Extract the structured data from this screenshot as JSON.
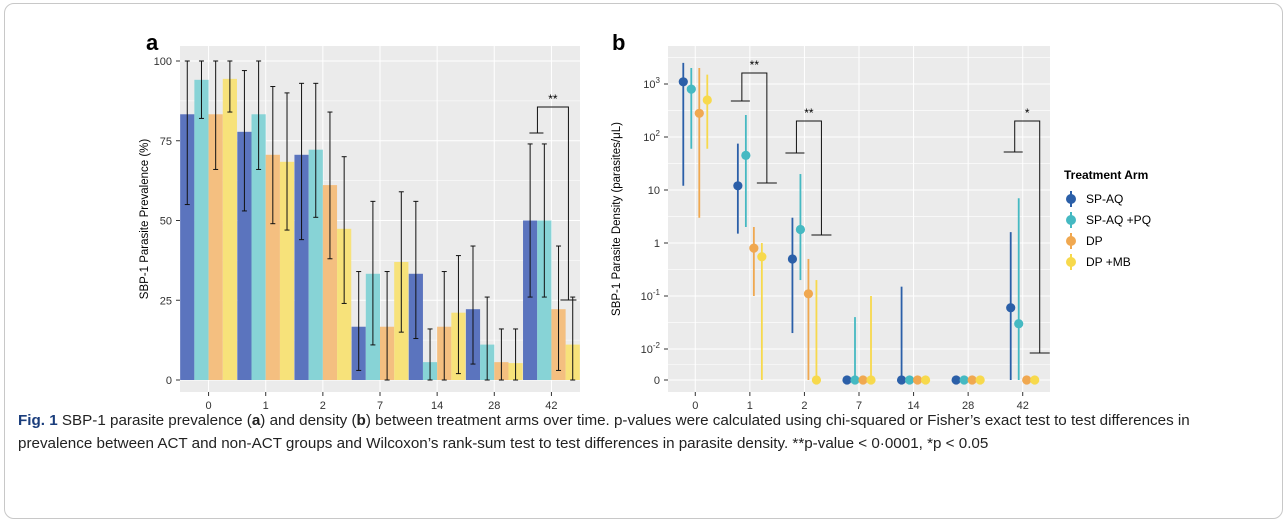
{
  "colors": {
    "sp_aq": "#5b74be",
    "sp_aq_pq": "#87d3d6",
    "dp": "#f4bf80",
    "dp_mb": "#f7e27a",
    "sp_aq_dot": "#2b5fa8",
    "sp_aq_pq_dot": "#45b9c2",
    "dp_dot": "#f0a850",
    "dp_mb_dot": "#f7d94c",
    "panel_bg": "#ebebeb",
    "grid": "#ffffff"
  },
  "chart_data": [
    {
      "panel": "a",
      "type": "bar",
      "xlabel": "Time (Days)",
      "ylabel": "SBP-1 Parasite Prevalence (%)",
      "ylim": [
        0,
        100
      ],
      "yticks": [
        "0",
        "25",
        "50",
        "75",
        "100"
      ],
      "categories": [
        "0",
        "1",
        "2",
        "7",
        "14",
        "28",
        "42"
      ],
      "series": [
        {
          "name": "SP-AQ",
          "values": [
            83.3,
            77.8,
            70.6,
            16.7,
            33.3,
            22.2,
            50.0
          ],
          "ci_low": [
            55,
            53,
            44,
            3,
            13,
            5,
            26
          ],
          "ci_high": [
            100,
            97,
            93,
            34,
            56,
            42,
            74
          ]
        },
        {
          "name": "SP-AQ +PQ",
          "values": [
            94.1,
            83.3,
            72.2,
            33.3,
            5.6,
            11.1,
            50.0
          ],
          "ci_low": [
            82,
            66,
            51,
            11,
            0,
            0,
            26
          ],
          "ci_high": [
            100,
            100,
            93,
            56,
            16,
            26,
            74
          ]
        },
        {
          "name": "DP",
          "values": [
            83.3,
            70.6,
            61.1,
            16.7,
            16.7,
            5.6,
            22.2
          ],
          "ci_low": [
            66,
            49,
            38,
            0,
            0,
            0,
            3
          ],
          "ci_high": [
            100,
            92,
            84,
            34,
            34,
            16,
            42
          ]
        },
        {
          "name": "DP +MB",
          "values": [
            94.4,
            68.4,
            47.4,
            37.0,
            21.1,
            5.3,
            11.1
          ],
          "ci_low": [
            84,
            47,
            24,
            15,
            2,
            0,
            0
          ],
          "ci_high": [
            100,
            90,
            70,
            59,
            39,
            16,
            26
          ]
        }
      ],
      "annotations": [
        {
          "text": "**",
          "day": "42"
        }
      ]
    },
    {
      "panel": "b",
      "type": "scatter",
      "xlabel": "Time (Days)",
      "ylabel": "SBP-1 Parasite Density (parasites/μL)",
      "yscale": "log (with 0 row)",
      "yticks": [
        "0",
        "10^-2",
        "10^-1",
        "1",
        "10",
        "10^2",
        "10^3"
      ],
      "categories": [
        "0",
        "1",
        "2",
        "7",
        "14",
        "28",
        "42"
      ],
      "series": [
        {
          "name": "SP-AQ",
          "values": [
            1100,
            12,
            0.5,
            0,
            0,
            0,
            0.06
          ],
          "ci_low": [
            12,
            1.5,
            0.02,
            0,
            0,
            0,
            0
          ],
          "ci_high": [
            2500,
            75,
            3,
            0,
            0.15,
            0,
            1.6
          ]
        },
        {
          "name": "SP-AQ +PQ",
          "values": [
            800,
            45,
            1.8,
            0,
            0,
            0,
            0.03
          ],
          "ci_low": [
            60,
            2,
            0.2,
            0,
            0,
            0,
            0
          ],
          "ci_high": [
            2000,
            260,
            20,
            0.04,
            0,
            0,
            7
          ]
        },
        {
          "name": "DP",
          "values": [
            280,
            0.8,
            0.11,
            0,
            0,
            0,
            0
          ],
          "ci_low": [
            3,
            0.1,
            0,
            0,
            0,
            0,
            0
          ],
          "ci_high": [
            2000,
            2,
            0.5,
            0,
            0,
            0,
            0
          ]
        },
        {
          "name": "DP +MB",
          "values": [
            500,
            0.55,
            0,
            0,
            0,
            0,
            0
          ],
          "ci_low": [
            60,
            0,
            0,
            0,
            0,
            0,
            0
          ],
          "ci_high": [
            1500,
            1,
            0.2,
            0.1,
            0,
            0,
            0
          ]
        }
      ],
      "annotations": [
        {
          "text": "**",
          "day": "1"
        },
        {
          "text": "**",
          "day": "2"
        },
        {
          "text": "*",
          "day": "42"
        }
      ]
    }
  ],
  "labels": {
    "panel_a": "a",
    "panel_b": "b",
    "legend_title": "Treatment Arm",
    "a_ann_42": "**",
    "b_ann_1": "**",
    "b_ann_2": "**",
    "b_ann_42": "*"
  },
  "caption": {
    "fig_label": "Fig. 1",
    "text_1": "  SBP-1 parasite prevalence (",
    "a": "a",
    "text_2": ") and density (",
    "b": "b",
    "text_3": ") between treatment arms over time. p-values were calculated using chi-squared or Fisher’s exact test to test differences in prevalence between ACT and non-ACT groups and Wilcoxon’s rank-sum test to test differences in parasite density. **p-value < 0·0001, *p < 0.05"
  }
}
